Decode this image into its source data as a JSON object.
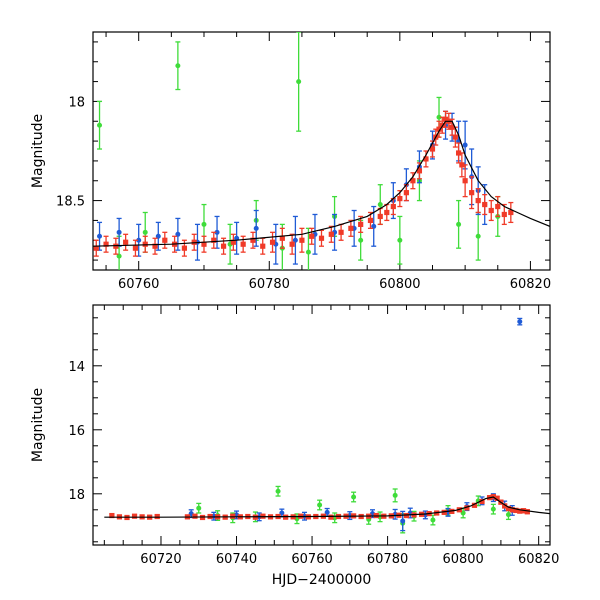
{
  "colors": {
    "blue": "#1f5bd6",
    "green": "#3fdc3a",
    "red": "#f03a28",
    "model": "#000000"
  },
  "chart_data": [
    {
      "type": "scatter",
      "title": "",
      "xlabel": "",
      "ylabel": "Magnitude",
      "xlim": [
        60753,
        60823
      ],
      "ylim": [
        18.85,
        17.65
      ],
      "y_inverted": true,
      "xticks": [
        60760,
        60780,
        60800,
        60820
      ],
      "xtick_labels": [
        "60760",
        "60780",
        "60800",
        "60820"
      ],
      "yticks": [
        18,
        18.5
      ],
      "ytick_labels": [
        "18",
        "18.5"
      ],
      "grid": false,
      "model_curve": {
        "x": [
          60753,
          60765,
          60775,
          60785,
          60790,
          60795,
          60798,
          60800,
          60802,
          60804,
          60806,
          60807,
          60808,
          60809,
          60810,
          60812,
          60814,
          60816,
          60818,
          60820,
          60823
        ],
        "y": [
          18.73,
          18.72,
          18.7,
          18.67,
          18.63,
          18.58,
          18.52,
          18.46,
          18.38,
          18.27,
          18.15,
          18.1,
          18.1,
          18.17,
          18.27,
          18.4,
          18.48,
          18.53,
          18.56,
          18.59,
          18.63
        ]
      },
      "series": [
        {
          "color_key": "red",
          "x": [
            60753.5,
            60755,
            60756.5,
            60758,
            60759.5,
            60761,
            60762.5,
            60764,
            60765.5,
            60767,
            60768.5,
            60770,
            60771.5,
            60773,
            60774.5,
            60776,
            60777.5,
            60779,
            60780.5,
            60782,
            60783.5,
            60785,
            60786.5,
            60788,
            60789.5,
            60791,
            60792.5,
            60794,
            60795.5,
            60797,
            60798,
            60799,
            60800,
            60801,
            60802,
            60803,
            60804,
            60805,
            60805.5,
            60806,
            60806.5,
            60807,
            60807.5,
            60808,
            60808.5,
            60809,
            60809.5,
            60810,
            60811,
            60812,
            60813,
            60814,
            60815,
            60816,
            60817
          ],
          "y": [
            18.74,
            18.72,
            18.73,
            18.71,
            18.74,
            18.72,
            18.73,
            18.7,
            18.72,
            18.74,
            18.71,
            18.72,
            18.7,
            18.73,
            18.71,
            18.72,
            18.7,
            18.73,
            18.71,
            18.69,
            18.72,
            18.7,
            18.68,
            18.69,
            18.67,
            18.66,
            18.64,
            18.62,
            18.6,
            18.58,
            18.56,
            18.53,
            18.49,
            18.46,
            18.4,
            18.35,
            18.29,
            18.24,
            18.18,
            18.14,
            18.12,
            18.09,
            18.1,
            18.13,
            18.18,
            18.26,
            18.32,
            18.4,
            18.46,
            18.5,
            18.52,
            18.55,
            18.53,
            18.57,
            18.56
          ],
          "err": [
            0.04,
            0.04,
            0.04,
            0.04,
            0.04,
            0.04,
            0.04,
            0.04,
            0.04,
            0.04,
            0.04,
            0.04,
            0.04,
            0.04,
            0.04,
            0.04,
            0.04,
            0.04,
            0.05,
            0.05,
            0.05,
            0.06,
            0.04,
            0.04,
            0.04,
            0.04,
            0.04,
            0.04,
            0.04,
            0.04,
            0.04,
            0.04,
            0.04,
            0.04,
            0.04,
            0.04,
            0.04,
            0.04,
            0.04,
            0.04,
            0.04,
            0.04,
            0.04,
            0.04,
            0.05,
            0.05,
            0.06,
            0.08,
            0.08,
            0.06,
            0.05,
            0.05,
            0.05,
            0.05,
            0.05
          ]
        },
        {
          "color_key": "blue",
          "x": [
            60754,
            60757,
            60760,
            60763,
            60766,
            60769,
            60772,
            60775,
            60778,
            60781,
            60784,
            60787,
            60790,
            60793,
            60796,
            60799,
            60801,
            60803,
            60805,
            60807,
            60808,
            60809,
            60810,
            60811,
            60812,
            60813
          ],
          "y": [
            18.68,
            18.66,
            18.7,
            18.68,
            18.67,
            18.71,
            18.66,
            18.69,
            18.64,
            18.72,
            18.7,
            18.67,
            18.66,
            18.64,
            18.63,
            18.5,
            18.42,
            18.33,
            18.22,
            18.12,
            18.13,
            18.2,
            18.22,
            18.38,
            18.45,
            18.52
          ],
          "err": [
            0.07,
            0.07,
            0.08,
            0.07,
            0.08,
            0.09,
            0.08,
            0.08,
            0.09,
            0.1,
            0.12,
            0.1,
            0.09,
            0.09,
            0.1,
            0.09,
            0.08,
            0.08,
            0.07,
            0.07,
            0.07,
            0.1,
            0.12,
            0.14,
            0.12,
            0.1
          ]
        },
        {
          "color_key": "green",
          "x": [
            60754,
            60757,
            60761,
            60766,
            60770,
            60774,
            60778,
            60782,
            60784.5,
            60786,
            60790,
            60794,
            60797,
            60800,
            60803,
            60806,
            60809,
            60812,
            60815
          ],
          "y": [
            18.12,
            18.78,
            18.66,
            17.82,
            18.62,
            18.72,
            18.6,
            18.74,
            17.9,
            18.76,
            18.58,
            18.7,
            18.52,
            18.7,
            18.4,
            18.08,
            18.62,
            18.68,
            18.58
          ],
          "err": [
            0.12,
            0.1,
            0.1,
            0.12,
            0.1,
            0.1,
            0.1,
            0.12,
            0.25,
            0.12,
            0.1,
            0.1,
            0.1,
            0.12,
            0.1,
            0.1,
            0.12,
            0.12,
            0.1
          ]
        }
      ]
    },
    {
      "type": "scatter",
      "title": "",
      "xlabel": "HJD−2400000",
      "ylabel": "Magnitude",
      "xlim": [
        60702,
        60823
      ],
      "ylim": [
        19.6,
        12.1
      ],
      "y_inverted": true,
      "xticks": [
        60720,
        60740,
        60760,
        60780,
        60800,
        60820
      ],
      "xtick_labels": [
        "60720",
        "60740",
        "60760",
        "60780",
        "60800",
        "60820"
      ],
      "yticks": [
        14,
        16,
        18
      ],
      "ytick_labels": [
        "14",
        "16",
        "18"
      ],
      "grid": false,
      "model_curve": {
        "x": [
          60705,
          60720,
          60740,
          60760,
          60780,
          60790,
          60798,
          60802,
          60806,
          60808,
          60810,
          60812,
          60815,
          60820,
          60823
        ],
        "y": [
          18.73,
          18.73,
          18.72,
          18.71,
          18.69,
          18.63,
          18.52,
          18.38,
          18.15,
          18.1,
          18.27,
          18.42,
          18.5,
          18.58,
          18.62
        ]
      },
      "series": [
        {
          "color_key": "red",
          "x": [
            60707,
            60709,
            60711,
            60713,
            60715,
            60717,
            60719,
            60727,
            60729,
            60731,
            60733,
            60735,
            60737,
            60739,
            60741,
            60743,
            60745,
            60747,
            60749,
            60751,
            60753,
            60755,
            60757,
            60759,
            60761,
            60763,
            60765,
            60767,
            60769,
            60771,
            60773,
            60775,
            60777,
            60779,
            60781,
            60783,
            60785,
            60787,
            60789,
            60791,
            60793,
            60795,
            60797,
            60799,
            60801,
            60803,
            60805,
            60807,
            60808,
            60809,
            60810,
            60811,
            60812,
            60813,
            60814,
            60815,
            60816,
            60817
          ],
          "y": [
            18.68,
            18.72,
            18.74,
            18.7,
            18.72,
            18.73,
            18.71,
            18.72,
            18.7,
            18.74,
            18.71,
            18.72,
            18.73,
            18.7,
            18.72,
            18.71,
            18.73,
            18.7,
            18.72,
            18.71,
            18.73,
            18.72,
            18.7,
            18.72,
            18.71,
            18.7,
            18.73,
            18.71,
            18.7,
            18.69,
            18.71,
            18.7,
            18.68,
            18.7,
            18.69,
            18.67,
            18.68,
            18.66,
            18.64,
            18.62,
            18.6,
            18.58,
            18.55,
            18.5,
            18.44,
            18.36,
            18.24,
            18.12,
            18.09,
            18.14,
            18.26,
            18.38,
            18.46,
            18.5,
            18.52,
            18.54,
            18.53,
            18.56
          ],
          "err": [
            0.05,
            0.05,
            0.05,
            0.05,
            0.05,
            0.05,
            0.05,
            0.05,
            0.05,
            0.05,
            0.05,
            0.05,
            0.05,
            0.05,
            0.05,
            0.05,
            0.05,
            0.05,
            0.05,
            0.05,
            0.05,
            0.05,
            0.05,
            0.05,
            0.05,
            0.05,
            0.05,
            0.05,
            0.05,
            0.05,
            0.05,
            0.05,
            0.05,
            0.05,
            0.05,
            0.05,
            0.05,
            0.05,
            0.05,
            0.05,
            0.05,
            0.05,
            0.05,
            0.05,
            0.05,
            0.05,
            0.05,
            0.05,
            0.05,
            0.06,
            0.06,
            0.06,
            0.06,
            0.06,
            0.06,
            0.06,
            0.06,
            0.06
          ]
        },
        {
          "color_key": "blue",
          "x": [
            60728,
            60734,
            60740,
            60746,
            60752,
            60758,
            60764,
            60770,
            60776,
            60782,
            60784,
            60786,
            60790,
            60796,
            60801,
            60805,
            60808,
            60811,
            60813,
            60815
          ],
          "y": [
            18.62,
            18.7,
            18.66,
            18.72,
            18.6,
            18.7,
            18.58,
            18.68,
            18.62,
            18.64,
            18.85,
            18.6,
            18.66,
            18.58,
            18.4,
            18.22,
            18.12,
            18.38,
            18.52,
            12.62
          ],
          "err": [
            0.12,
            0.12,
            0.12,
            0.12,
            0.12,
            0.12,
            0.12,
            0.12,
            0.12,
            0.15,
            0.3,
            0.15,
            0.12,
            0.12,
            0.12,
            0.12,
            0.12,
            0.15,
            0.15,
            0.1
          ]
        },
        {
          "color_key": "green",
          "x": [
            60730,
            60735,
            60739,
            60745,
            60751,
            60756,
            60762,
            60766,
            60771,
            60775,
            60778,
            60782,
            60784,
            60787,
            60792,
            60796,
            60800,
            60804,
            60808,
            60812
          ],
          "y": [
            18.45,
            18.68,
            18.75,
            18.72,
            17.92,
            18.78,
            18.35,
            18.75,
            18.1,
            18.8,
            18.72,
            18.05,
            18.92,
            18.7,
            18.82,
            18.52,
            18.6,
            18.22,
            18.48,
            18.65
          ],
          "err": [
            0.15,
            0.15,
            0.15,
            0.15,
            0.15,
            0.15,
            0.15,
            0.15,
            0.15,
            0.15,
            0.15,
            0.2,
            0.3,
            0.15,
            0.15,
            0.15,
            0.15,
            0.15,
            0.15,
            0.15
          ]
        }
      ]
    }
  ]
}
